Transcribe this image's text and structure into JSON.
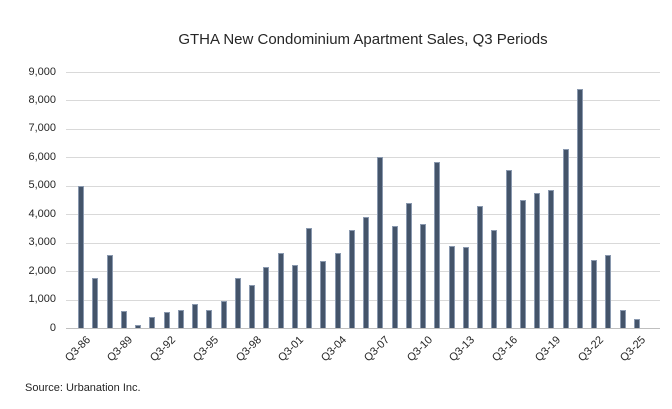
{
  "source": "Source: Urbanation Inc.",
  "chart_data": {
    "type": "bar",
    "title": "GTHA New Condominium Apartment Sales, Q3 Periods",
    "xlabel": "",
    "ylabel": "",
    "ylim": [
      0,
      9000
    ],
    "y_tick_interval": 1000,
    "grid": "horizontal",
    "legend": "none",
    "bar_color": "#44546A",
    "bar_edge_color": "#8A99AF",
    "gridline_color": "#D9D9D9",
    "axis_line_color": "#BFBFBF",
    "categories": [
      "Q3-86",
      "Q3-87",
      "Q3-88",
      "Q3-89",
      "Q3-90",
      "Q3-91",
      "Q3-92",
      "Q3-93",
      "Q3-94",
      "Q3-95",
      "Q3-96",
      "Q3-97",
      "Q3-98",
      "Q3-99",
      "Q3-00",
      "Q3-01",
      "Q3-02",
      "Q3-03",
      "Q3-04",
      "Q3-05",
      "Q3-06",
      "Q3-07",
      "Q3-08",
      "Q3-09",
      "Q3-10",
      "Q3-11",
      "Q3-12",
      "Q3-13",
      "Q3-14",
      "Q3-15",
      "Q3-16",
      "Q3-17",
      "Q3-18",
      "Q3-19",
      "Q3-20",
      "Q3-21",
      "Q3-22",
      "Q3-23",
      "Q3-24",
      "Q3-25"
    ],
    "values": [
      5000,
      1750,
      2550,
      600,
      100,
      400,
      550,
      650,
      850,
      650,
      950,
      1750,
      1500,
      2150,
      2650,
      2200,
      3500,
      2350,
      2650,
      3450,
      3900,
      6000,
      3600,
      4400,
      3650,
      5850,
      2900,
      2850,
      4300,
      3450,
      5550,
      4500,
      4750,
      4850,
      6300,
      8400,
      2400,
      2550,
      650,
      300
    ],
    "y_tick_labels": [
      "9,000",
      "8,000",
      "7,000",
      "6,000",
      "5,000",
      "4,000",
      "3,000",
      "2,000",
      "1,000",
      "0"
    ],
    "x_tick_labels": [
      "Q3-86",
      "Q3-89",
      "Q3-92",
      "Q3-95",
      "Q3-98",
      "Q3-01",
      "Q3-04",
      "Q3-07",
      "Q3-10",
      "Q3-13",
      "Q3-16",
      "Q3-19",
      "Q3-22",
      "Q3-25"
    ],
    "x_tick_every": 3
  }
}
